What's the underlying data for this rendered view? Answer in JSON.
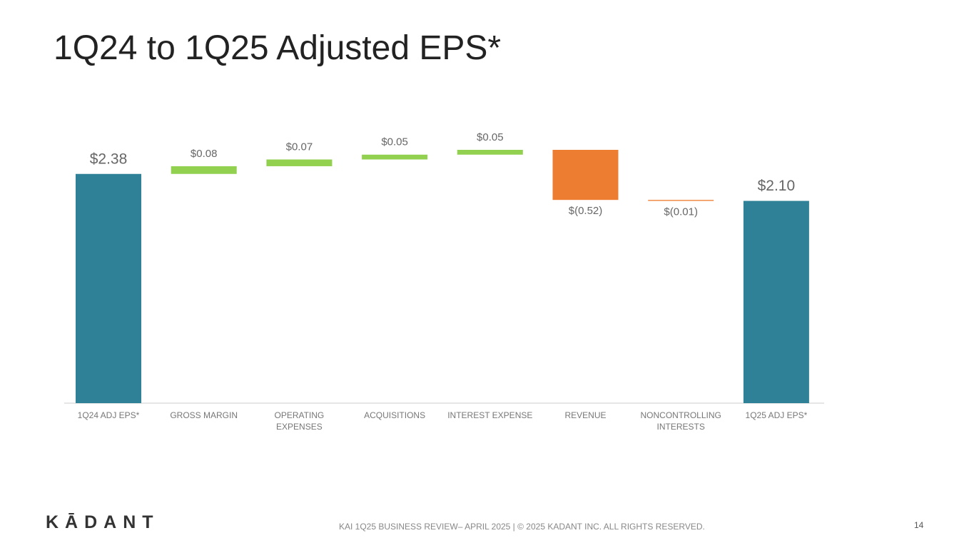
{
  "chart_data": {
    "type": "waterfall",
    "title": "1Q24 to 1Q25 Adjusted EPS*",
    "categories": [
      "1Q24 ADJ EPS*",
      "GROSS MARGIN",
      "OPERATING EXPENSES",
      "ACQUISITIONS",
      "INTEREST EXPENSE",
      "REVENUE",
      "NONCONTROLLING INTERESTS",
      "1Q25 ADJ EPS*"
    ],
    "values": [
      2.38,
      0.08,
      0.07,
      0.05,
      0.05,
      -0.52,
      -0.01,
      2.1
    ],
    "value_labels": [
      "$2.38",
      "$0.08",
      "$0.07",
      "$0.05",
      "$0.05",
      "$(0.52)",
      "$(0.01)",
      "$2.10"
    ],
    "measure": [
      "absolute",
      "relative",
      "relative",
      "relative",
      "relative",
      "relative",
      "relative",
      "total"
    ],
    "colors": {
      "total": "#2e8196",
      "increase": "#92d050",
      "decrease": "#ed7d31"
    }
  },
  "logo": "KĀDANT",
  "footer": "KAI 1Q25 BUSINESS REVIEW– APRIL 2025 | © 2025 KADANT INC. ALL RIGHTS RESERVED.",
  "page_number": "14"
}
